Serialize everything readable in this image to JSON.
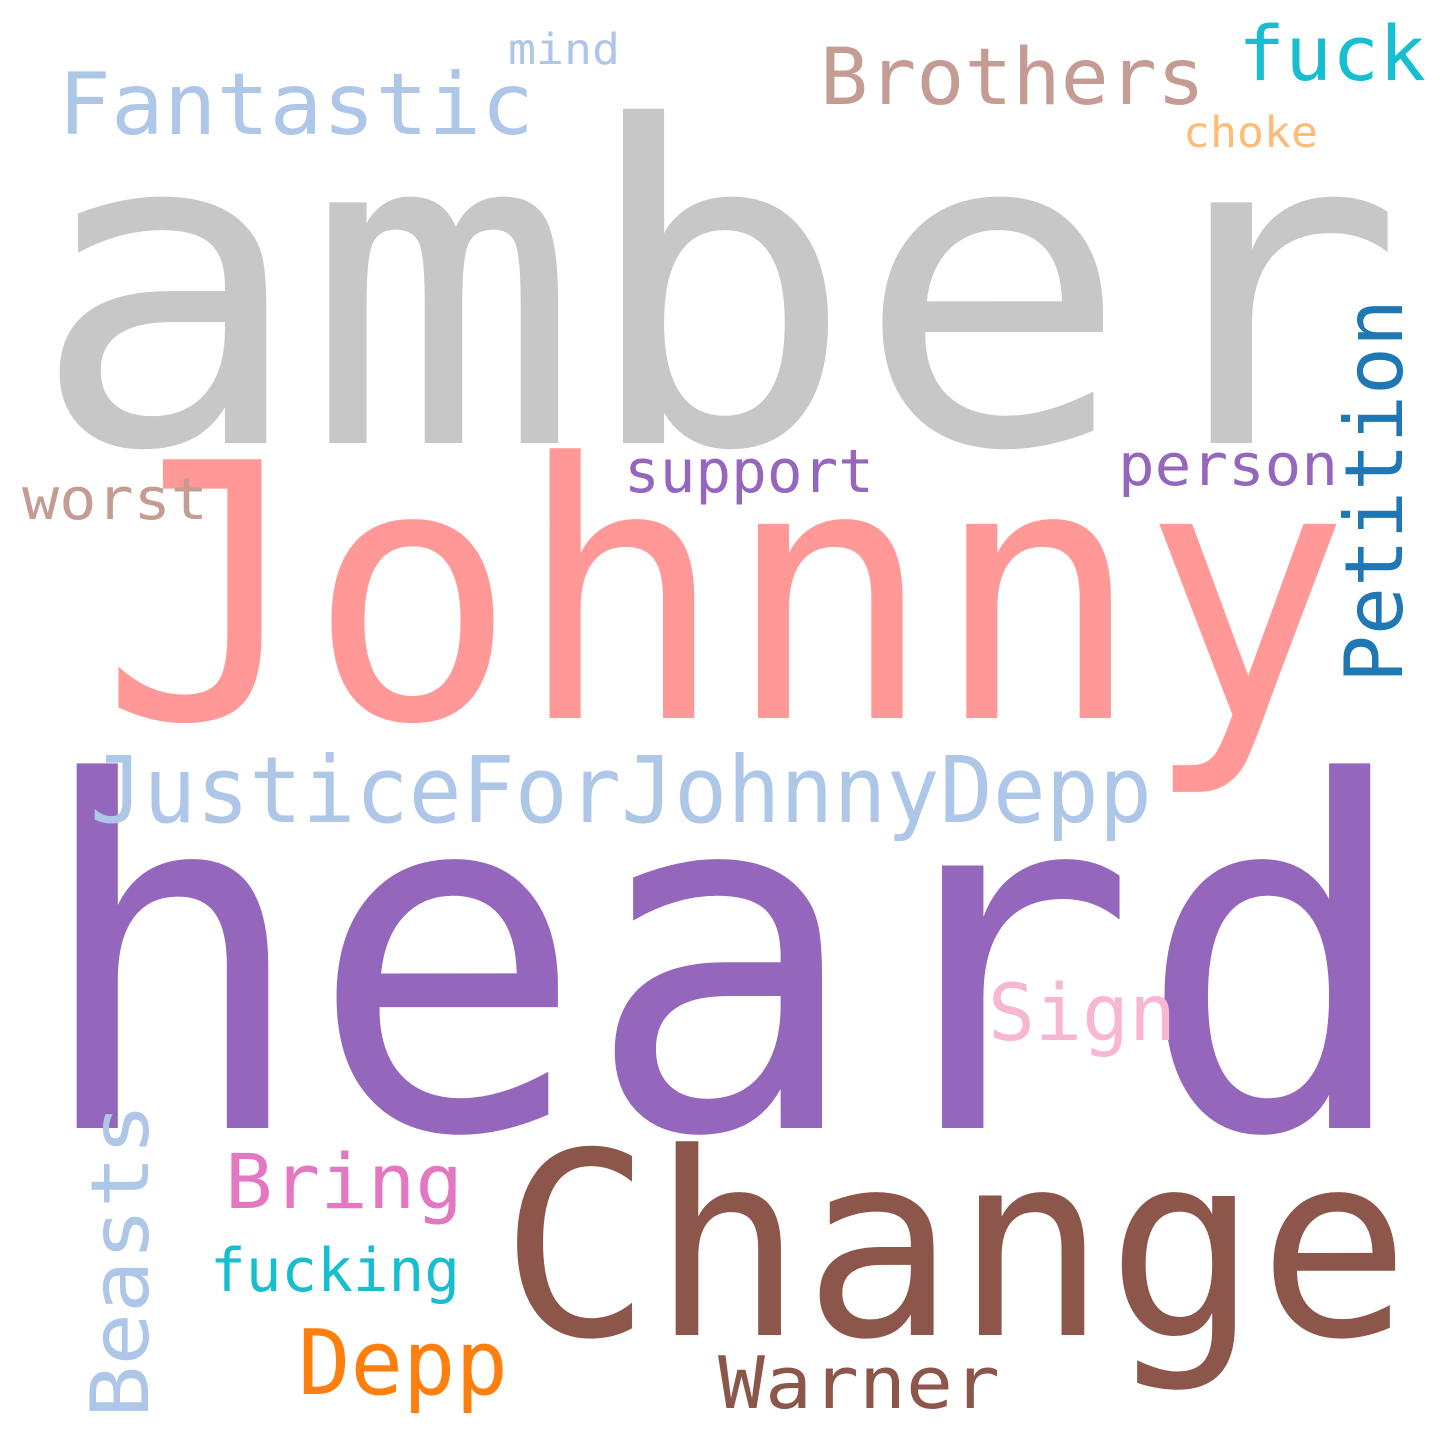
{
  "words": [
    {
      "text": "amber",
      "color": "#c7c7c7"
    },
    {
      "text": "Johnny",
      "color": "#ff9896"
    },
    {
      "text": "heard",
      "color": "#9467bd"
    },
    {
      "text": "Change",
      "color": "#8c564b"
    },
    {
      "text": "JusticeForJohnnyDepp",
      "color": "#aec7e8"
    },
    {
      "text": "Fantastic",
      "color": "#aec7e8"
    },
    {
      "text": "Brothers",
      "color": "#c49c94"
    },
    {
      "text": "fuck",
      "color": "#17becf"
    },
    {
      "text": "mind",
      "color": "#aec7e8"
    },
    {
      "text": "choke",
      "color": "#ffbb78"
    },
    {
      "text": "Petition",
      "color": "#1f77b4"
    },
    {
      "text": "support",
      "color": "#9467bd"
    },
    {
      "text": "person",
      "color": "#9467bd"
    },
    {
      "text": "worst",
      "color": "#c49c94"
    },
    {
      "text": "Sign",
      "color": "#f7b6d2"
    },
    {
      "text": "Beasts",
      "color": "#aec7e8"
    },
    {
      "text": "Bring",
      "color": "#e377c2"
    },
    {
      "text": "fucking",
      "color": "#17becf"
    },
    {
      "text": "Depp",
      "color": "#ff7f0e"
    },
    {
      "text": "Warner",
      "color": "#8c564b"
    }
  ]
}
